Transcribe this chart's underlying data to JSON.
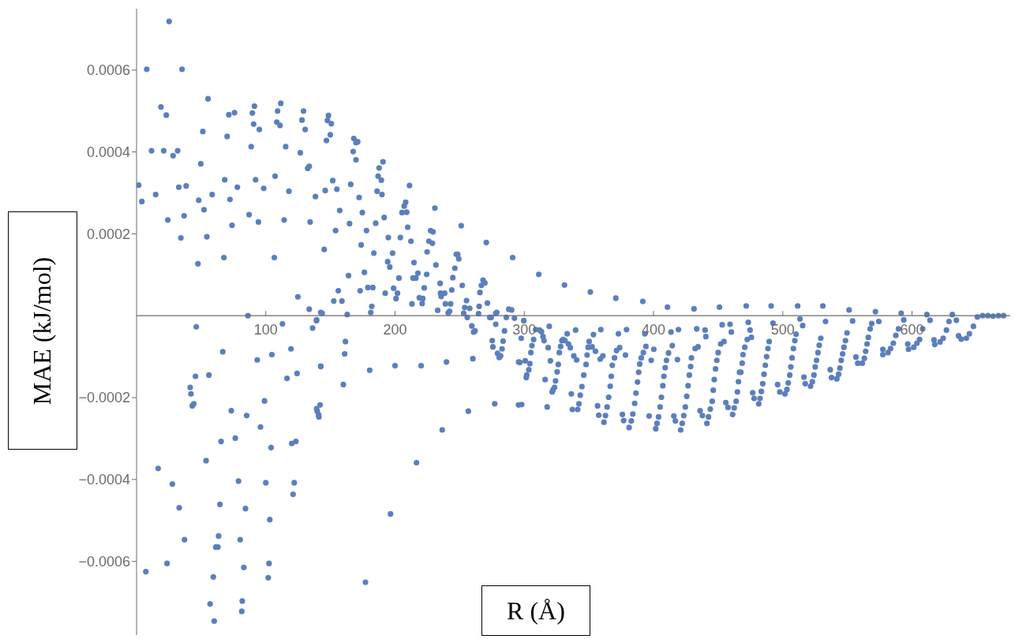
{
  "chart_data": {
    "type": "scatter",
    "xlabel": "R (Å)",
    "ylabel": "MAE (kJ/mol)",
    "color": "#5b7fbd",
    "marker": "circle",
    "xlim": [
      0,
      676
    ],
    "ylim": [
      -0.00078,
      0.00075
    ],
    "xticks": [
      100,
      200,
      300,
      400,
      500,
      600
    ],
    "yticks": [
      {
        "value": -0.0006,
        "label": "−0.0006"
      },
      {
        "value": -0.0004,
        "label": "−0.0004"
      },
      {
        "value": -0.0002,
        "label": "−0.0002"
      },
      {
        "value": 0.0002,
        "label": "0.0002"
      },
      {
        "value": 0.0004,
        "label": "0.0004"
      },
      {
        "value": 0.0006,
        "label": "0.0006"
      }
    ],
    "x": [
      1.6,
      4.1,
      7.9,
      11.6,
      14.8,
      18.9,
      21,
      23,
      24.2,
      25.2,
      28.3,
      31.8,
      32.7,
      34.3,
      35.2,
      36.8,
      38.4,
      46.2,
      47.5,
      48.1,
      49.7,
      51.3,
      52.2,
      54.4,
      55.3,
      58.5,
      66.7,
      67.6,
      68.2,
      70.1,
      71.4,
      72.3,
      73.9,
      75.8,
      78,
      86.2,
      87.1,
      88.7,
      89.6,
      90.6,
      91.2,
      92.1,
      94.3,
      95,
      98.4,
      106.6,
      107.2,
      108.5,
      109.1,
      111,
      111.6,
      112.9,
      114.2,
      115.4,
      117.9,
      124.8,
      126.7,
      128,
      129.2,
      130.5,
      132.4,
      133.6,
      134.3,
      133.6,
      136.2,
      138.4,
      139.3,
      142.5,
      7.2,
      16.7,
      23.6,
      27.7,
      33,
      37.1,
      41.5,
      42.1,
      43.1,
      44.3,
      45.6,
      53.8,
      56,
      56.9,
      59.4,
      60.1,
      61.3,
      62.9,
      63.5,
      64.5,
      65.4,
      73.3,
      76.4,
      78.9,
      80.2,
      81.8,
      81.4,
      83,
      84.3,
      85.2,
      93.4,
      95.9,
      99,
      100,
      101.9,
      102.5,
      103.1,
      104.1,
      104.7,
      116.4,
      119.5,
      120.1,
      121.1,
      122,
      123.3,
      124.2,
      139.3,
      140.9,
      142.5,
      148.5,
      147.7,
      150.7,
      149.9,
      146.9,
      151.8,
      155,
      146,
      157.2,
      154,
      145.2,
      164,
      156.1,
      152.6,
      158.9,
      143.6,
      163,
      168.1,
      169.8,
      171.1,
      167.6,
      169.8,
      165.7,
      172.2,
      164.8,
      174.7,
      177.9,
      173.8,
      176.3,
      173,
      179,
      182.8,
      182,
      181.2,
      187.7,
      190.7,
      186.9,
      189.4,
      186.1,
      189.9,
      185,
      191.6,
      183.6,
      194.8,
      194.3,
      195.9,
      198.1,
      198.9,
      192.4,
      201.9,
      200.8,
      203,
      204.1,
      205.4,
      207.1,
      208.2,
      209,
      211.2,
      209.8,
      212.3,
      214.7,
      213.9,
      216.1,
      217.7,
      213.1,
      218.8,
      221.5,
      221,
      222.6,
      224.5,
      224.8,
      226.2,
      227.5,
      229.4,
      228.9,
      230.8,
      231.6,
      233,
      234.9,
      235.2,
      235.7,
      238.4,
      239,
      241.1,
      242.2,
      243,
      243.9,
      244.7,
      246.3,
      247.4,
      248.5,
      249.3,
      251.2,
      252,
      253.1,
      253.9,
      255.3,
      255.9,
      257.8,
      259.4,
      260.8,
      261.9,
      264.6,
      265.1,
      265.7,
      266.8,
      268.1,
      269.5,
      270.6,
      271.4,
      273.3,
      274.4,
      277.9,
      277.9,
      278.7,
      284.7,
      286.1,
      288,
      290.2,
      291,
      292.4,
      139.2,
      161.6,
      161,
      142.5,
      160,
      142,
      139.8,
      141.1,
      180.4,
      200,
      220.2,
      239.8,
      260.2,
      275.7,
      279.3,
      280.6,
      281.7,
      282.8,
      283.6,
      275.2,
      256.7,
      277.1,
      295.6,
      295.6,
      236.5,
      216.6,
      196.5,
      177.1,
      299.6,
      297.6,
      296.6,
      300.7,
      298,
      304.3,
      303.5,
      301.9,
      301.5,
      305.1,
      305.9,
      307.2,
      308.8,
      311.2,
      311.8,
      313.3,
      314.5,
      315.3,
      316.1,
      317.7,
      318.5,
      319.3,
      320.2,
      321.6,
      322.2,
      323.4,
      324.2,
      325.4,
      326.3,
      327.1,
      328.1,
      329.1,
      330.1,
      331.1,
      331.5,
      333.2,
      334.2,
      335.6,
      336.4,
      337.2,
      338.3,
      339.7,
      340.5,
      341.3,
      342.3,
      343.3,
      344.6,
      346,
      347.8,
      348.6,
      349.4,
      350.2,
      351.1,
      352.5,
      353.5,
      355.1,
      356.7,
      357.6,
      358.8,
      359.2,
      360.8,
      361.6,
      362.8,
      364.1,
      365.3,
      366.5,
      367.3,
      368.1,
      369.8,
      370.8,
      371.4,
      372.8,
      373.8,
      375.9,
      376.9,
      378.3,
      379.1,
      381.1,
      382.8,
      384,
      385.4,
      386.4,
      387.6,
      388.5,
      389.3,
      390.5,
      391.7,
      392.1,
      393.3,
      394.1,
      396.6,
      398.2,
      400.2,
      401.7,
      402.7,
      403.9,
      405.1,
      406.1,
      407.2,
      408,
      409,
      410,
      410.8,
      411.6,
      413.5,
      414.5,
      415.7,
      416.9,
      418.5,
      419.3,
      421,
      422.2,
      423.4,
      424.6,
      425.7,
      426.7,
      427.7,
      428.7,
      429.3,
      431.3,
      432.2,
      433.4,
      434.4,
      436,
      437.8,
      439.9,
      440.5,
      441.3,
      442.5,
      443.9,
      445.4,
      446.2,
      447,
      448,
      449,
      450,
      451,
      451.9,
      453.1,
      454.5,
      455.9,
      457.6,
      459.2,
      460.2,
      461.2,
      462.4,
      463.9,
      464.9,
      465.7,
      466.5,
      467.6,
      468.6,
      469.2,
      470.6,
      471.7,
      472.5,
      473.3,
      474.7,
      475.7,
      476.7,
      477.8,
      481.4,
      482.4,
      483.4,
      484.5,
      485.5,
      486.5,
      487.5,
      488.5,
      489.5,
      491,
      492.4,
      496,
      497.7,
      501.7,
      503.2,
      504.2,
      505.4,
      506.2,
      507.2,
      508.2,
      509.3,
      510.3,
      511.5,
      513.3,
      515.4,
      516.4,
      517.4,
      521.5,
      522.9,
      524.1,
      525.1,
      526.1,
      527.2,
      528.2,
      529.4,
      531,
      533.1,
      536.7,
      537.7,
      541.8,
      543.2,
      544.2,
      545.2,
      546.3,
      547.3,
      548.5,
      549.7,
      551.3,
      554,
      556.6,
      558,
      561.5,
      563.1,
      564.1,
      565.2,
      566.2,
      567.6,
      568.8,
      571.7,
      574.3,
      577.4,
      577.4,
      581.4,
      583.4,
      585.5,
      587.5,
      589.5,
      591.6,
      593.6,
      596.7,
      597.3,
      601.3,
      603.8,
      605.8,
      608.2,
      611.5,
      613.9,
      617,
      617.6,
      621.7,
      624.1,
      626.6,
      628.6,
      631.2,
      634.3,
      636,
      638,
      642,
      644.4,
      647.5,
      650.5,
      654.6,
      658.7,
      662.7,
      666.8,
      670.8
    ],
    "values": [
      0.000319,
      0.000279,
      0.000602,
      0.000403,
      0.000296,
      0.00051,
      0.000403,
      0.00049,
      0.000234,
      0.000719,
      0.000391,
      0.000403,
      0.000314,
      0.00019,
      0.000602,
      0.000244,
      0.000317,
      -2.7e-05,
      0.000127,
      0.000282,
      0.000371,
      0.00045,
      0.000259,
      0.000193,
      0.00053,
      0.000296,
      -8.8e-05,
      0.000142,
      0.000332,
      0.000438,
      0.000491,
      0.000284,
      0.000221,
      0.000496,
      0.000314,
      0,
      0.000247,
      0.000413,
      0.000495,
      0.000468,
      0.000512,
      0.000332,
      0.000229,
      0.000455,
      0.000311,
      0.000142,
      0.000341,
      0.000473,
      0.0005,
      0.000465,
      0.000519,
      -2e-05,
      0.000234,
      0.000413,
      0.000304,
      4.6e-05,
      0.000398,
      0.000478,
      0.0005,
      0.000455,
      0.00036,
      0.000365,
      0.000229,
      1.6e-05,
      -3e-05,
      0.000291,
      -1e-05,
      8e-06,
      -0.000625,
      -0.000373,
      -0.000605,
      -0.000411,
      -0.000469,
      -0.000547,
      -0.000175,
      -0.000191,
      -0.00022,
      -0.000215,
      -0.000148,
      -0.000354,
      -0.000145,
      -0.000704,
      -0.000638,
      -0.000746,
      -0.000565,
      -0.000565,
      -0.000538,
      -0.000461,
      -0.000307,
      -0.000232,
      -0.000299,
      -0.000404,
      -0.000547,
      -0.000697,
      -0.000722,
      -0.000615,
      -0.000471,
      -0.000244,
      -0.000108,
      -0.000272,
      -0.000208,
      -0.000408,
      -0.00064,
      -0.000605,
      -0.000498,
      -0.000322,
      -9.5e-05,
      -0.000153,
      -8.1e-05,
      -0.000312,
      -0.000436,
      -0.000408,
      -0.000307,
      -0.000141,
      -0.000227,
      -0.000242,
      -0.000123,
      0.000489,
      0.000477,
      0.000469,
      0.000442,
      0.000428,
      0.00033,
      0.000309,
      0.000306,
      0.000257,
      0.000208,
      0.000162,
      9.8e-05,
      6.1e-05,
      3.6e-05,
      3.6e-05,
      6e-06,
      3e-06,
      0.000433,
      0.000423,
      0.000425,
      0.000401,
      0.000381,
      0.000321,
      0.000289,
      0.000225,
      0.000252,
      0.000208,
      0.000173,
      0.000106,
      6.1e-05,
      6.9e-05,
      6.9e-05,
      2.3e-05,
      8e-06,
      0.000361,
      0.000376,
      0.000341,
      0.000331,
      0.000304,
      0.000296,
      0.000226,
      0.00024,
      0.000153,
      0.000191,
      0.000132,
      0.000119,
      0.000153,
      6.7e-05,
      5.5e-05,
      5.5e-05,
      4.2e-05,
      9.2e-05,
      0.000191,
      0.000252,
      0.000268,
      0.000277,
      0.000253,
      0.000318,
      0.000216,
      0.000182,
      0.00013,
      9.2e-05,
      9.2e-05,
      0.000104,
      2.9e-05,
      4.4e-05,
      4.2e-05,
      3e-05,
      6.8e-05,
      0.000101,
      0.000156,
      0.000182,
      0.000208,
      0.000205,
      0.000177,
      0.000263,
      0.000124,
      1.3e-05,
      7.9e-05,
      5.5e-05,
      4.7e-05,
      5.5e-05,
      2.9e-05,
      7e-06,
      1.1e-05,
      2.9e-05,
      6.3e-05,
      9.3e-05,
      0.000116,
      0.00015,
      0.00015,
      0.000139,
      0.00022,
      7.4e-05,
      6e-06,
      2e-05,
      3.7e-05,
      -4e-06,
      1.8e-05,
      -2.5e-05,
      -4e-05,
      -3.7e-05,
      5e-06,
      2.3e-05,
      5.7e-05,
      7.4e-05,
      8.7e-05,
      8e-05,
      0.000179,
      3.1e-05,
      -4e-06,
      -4e-06,
      6e-06,
      -2.1e-05,
      8e-06,
      -3.7e-05,
      -4e-06,
      1.6e-05,
      1.4e-05,
      0.000142,
      -6e-06,
      -1.2e-05,
      -6.3e-05,
      -9.3e-05,
      -0.000124,
      -0.000168,
      -0.000218,
      -0.000233,
      -0.000247,
      -0.000133,
      -0.000122,
      -0.000122,
      -0.000113,
      -0.000105,
      -7.6e-05,
      -9.2e-05,
      -0.000102,
      -9.8e-05,
      -8.1e-05,
      -6.2e-05,
      -6.1e-05,
      -0.000233,
      -0.000215,
      -0.000113,
      -0.000218,
      -0.000279,
      -0.000359,
      -0.000484,
      -0.000651,
      -1.2e-05,
      -5.5e-05,
      -0.000114,
      -0.00011,
      -0.000217,
      -0.000117,
      -0.000132,
      -0.000145,
      -0.000151,
      -9e-05,
      -7.3e-05,
      -5.8e-05,
      -3.4e-05,
      0.000101,
      -3.5e-05,
      -3.9e-05,
      -5.1e-05,
      -6.1e-05,
      -0.000156,
      -0.000223,
      -7.8e-05,
      -2.6e-05,
      -0.00011,
      -0.000186,
      -0.000181,
      -0.000175,
      -0.000159,
      -0.000137,
      -0.000119,
      -9e-05,
      -7.5e-05,
      -6.1e-05,
      -5.8e-05,
      7.5e-05,
      -6.1e-05,
      -4.4e-05,
      -6.9e-05,
      -7.8e-05,
      -0.000191,
      -0.000229,
      -9.8e-05,
      -3.5e-05,
      -0.000108,
      -0.000229,
      -0.000215,
      -0.000194,
      -0.000173,
      -0.000145,
      -0.000119,
      -9.6e-05,
      -7.7e-05,
      -6.3e-05,
      5.8e-05,
      -7.6e-05,
      -4.6e-05,
      -8.7e-05,
      -0.00022,
      -0.000243,
      -0.000106,
      -3.4e-05,
      -9.8e-05,
      -0.00026,
      -0.000244,
      -0.000223,
      -0.000199,
      -0.000172,
      -0.000148,
      -0.000121,
      -0.000103,
      4.3e-05,
      -8.5e-05,
      -4.4e-05,
      -7.8e-05,
      -0.000241,
      -0.000256,
      -9.6e-05,
      -3.4e-05,
      -0.000273,
      -0.000257,
      -0.00024,
      -0.000214,
      -0.000189,
      -0.000162,
      -0.000138,
      -0.000118,
      -0.000103,
      3.5e-05,
      -9e-05,
      -4.4e-05,
      -7.5e-05,
      -0.000245,
      -0.000109,
      -8.2e-05,
      -0.000276,
      -0.000263,
      -0.000247,
      -0.000223,
      -0.000199,
      -0.000171,
      -0.000148,
      -0.000127,
      -0.000109,
      2.1e-05,
      -9.1e-05,
      -4e-05,
      -7.3e-05,
      -0.000245,
      -0.000257,
      -0.000107,
      -3.4e-05,
      -0.000279,
      -0.000263,
      -0.000244,
      -0.000223,
      -0.000197,
      -0.000171,
      -0.000145,
      -0.000124,
      -0.000103,
      1.7e-05,
      -8e-05,
      -3.2e-05,
      -7.6e-05,
      -0.000232,
      -0.000244,
      -3.5e-05,
      -5.1e-05,
      -0.000263,
      -0.000247,
      -0.000228,
      -0.000209,
      -0.000182,
      -0.000156,
      -0.00013,
      -0.000109,
      -9e-05,
      2.1e-05,
      -6.9e-05,
      -2.2e-05,
      -6.3e-05,
      -0.000212,
      -0.000224,
      -2.1e-05,
      -4e-05,
      -0.000241,
      -0.000225,
      -0.000209,
      -0.000186,
      -0.000161,
      -0.000138,
      -0.000138,
      -0.000116,
      -9.5e-05,
      -7.7e-05,
      2.4e-05,
      -5.8e-05,
      -1.6e-05,
      -3.5e-05,
      -5.3e-05,
      -0.000188,
      -0.000202,
      -0.000215,
      -0.000202,
      -0.000185,
      -0.000166,
      -0.000143,
      -0.000121,
      -0.0001,
      -8e-05,
      -6.3e-05,
      2.4e-05,
      -1.8e-05,
      -0.000168,
      -0.000186,
      -0.000191,
      -0.00018,
      -0.000164,
      -0.000145,
      -0.000125,
      -0.000103,
      -8e-05,
      -6.1e-05,
      -4.5e-05,
      2.4e-05,
      -8e-06,
      -2.4e-05,
      -0.00015,
      -0.000166,
      -0.000172,
      -0.000161,
      -0.000145,
      -0.000125,
      -0.000109,
      -9e-05,
      -7.2e-05,
      -5.5e-05,
      2.4e-05,
      -1.4e-05,
      -0.000132,
      -0.000151,
      -0.000154,
      -0.000143,
      -0.000128,
      -0.000109,
      -9.3e-05,
      -7.7e-05,
      -6.1e-05,
      -4.2e-05,
      1.4e-05,
      -1.3e-05,
      -0.000101,
      -0.000116,
      -0.000116,
      -0.000104,
      -8.7e-05,
      -6.9e-05,
      -5.3e-05,
      -3.2e-05,
      -1.9e-05,
      1e-05,
      -1.4e-05,
      -8.2e-05,
      -9.5e-05,
      -9e-05,
      -8e-05,
      -6.7e-05,
      -4.8e-05,
      -3.2e-05,
      6e-06,
      -1e-05,
      -6.9e-05,
      -8.2e-05,
      -7.7e-05,
      -6.7e-05,
      -5.8e-05,
      -3.2e-05,
      3e-06,
      -1.1e-05,
      -5.9e-05,
      -7e-05,
      -6.4e-05,
      -5.5e-05,
      -3.5e-05,
      -1.4e-05,
      3e-06,
      -1.1e-05,
      -4.9e-05,
      -5.7e-05,
      -5.5e-05,
      -4.4e-05,
      -2.6e-05,
      -3e-06,
      0,
      0,
      -1e-06,
      0,
      0
    ]
  }
}
